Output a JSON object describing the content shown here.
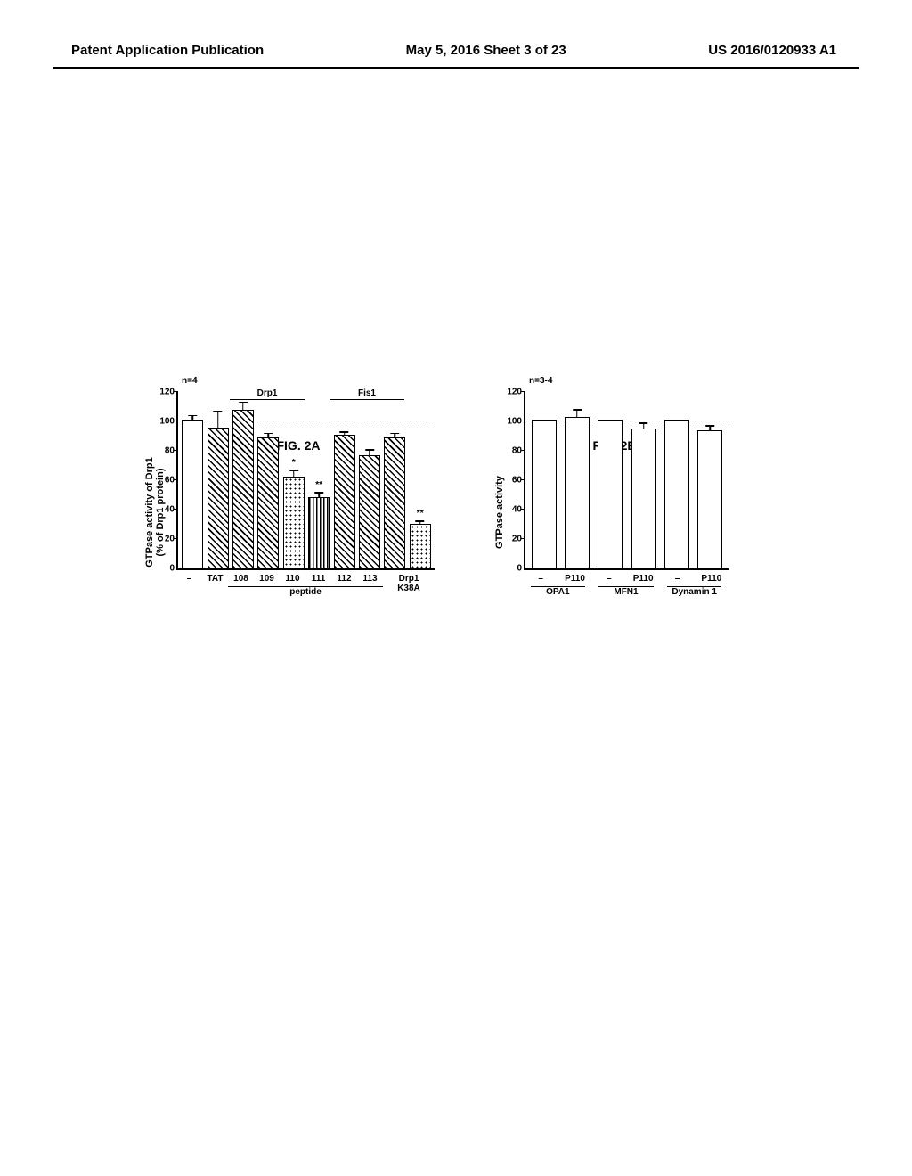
{
  "header": {
    "left": "Patent Application Publication",
    "center": "May 5, 2016  Sheet 3 of 23",
    "right": "US 2016/0120933 A1"
  },
  "chartA": {
    "type": "bar",
    "ylabel_line1": "GTPase activity of Drp1",
    "ylabel_line2": "(% of Drp1 protein)",
    "n_label": "n=4",
    "ylim": [
      0,
      120
    ],
    "ytick_step": 20,
    "top_label_drp1": "Drp1",
    "top_label_fis1": "Fis1",
    "bars": [
      {
        "value": 100,
        "err": 4,
        "fill": "white",
        "sig": ""
      },
      {
        "value": 95,
        "err": 12,
        "fill": "hatch",
        "sig": ""
      },
      {
        "value": 107,
        "err": 6,
        "fill": "hatch",
        "sig": ""
      },
      {
        "value": 88,
        "err": 4,
        "fill": "hatch",
        "sig": ""
      },
      {
        "value": 62,
        "err": 5,
        "fill": "dots",
        "sig": "*"
      },
      {
        "value": 48,
        "err": 4,
        "fill": "vert",
        "sig": "**"
      },
      {
        "value": 90,
        "err": 3,
        "fill": "hatch",
        "sig": ""
      },
      {
        "value": 76,
        "err": 5,
        "fill": "hatch",
        "sig": ""
      },
      {
        "value": 88,
        "err": 4,
        "fill": "hatch",
        "sig": ""
      },
      {
        "value": 30,
        "err": 3,
        "fill": "dots",
        "sig": "**"
      }
    ],
    "x_labels": [
      "–",
      "TAT",
      "108",
      "109",
      "110",
      "111",
      "112",
      "113",
      "Drp1",
      "K38A"
    ],
    "x_group_peptide": "peptide",
    "caption": "FIG. 2A"
  },
  "chartB": {
    "type": "bar",
    "ylabel": "GTPase activity",
    "n_label": "n=3-4",
    "ylim": [
      0,
      120
    ],
    "ytick_step": 20,
    "bars": [
      {
        "value": 100,
        "err": 0,
        "fill": "white"
      },
      {
        "value": 102,
        "err": 6,
        "fill": "white"
      },
      {
        "value": 100,
        "err": 0,
        "fill": "white"
      },
      {
        "value": 94,
        "err": 5,
        "fill": "white"
      },
      {
        "value": 100,
        "err": 0,
        "fill": "white"
      },
      {
        "value": 93,
        "err": 4,
        "fill": "white"
      }
    ],
    "x_labels_top": [
      "–",
      "P110",
      "–",
      "P110",
      "–",
      "P110"
    ],
    "x_groups": [
      "OPA1",
      "MFN1",
      "Dynamin 1"
    ],
    "caption": "FIG. 2B"
  },
  "colors": {
    "axis": "#000000",
    "bg": "#ffffff"
  }
}
